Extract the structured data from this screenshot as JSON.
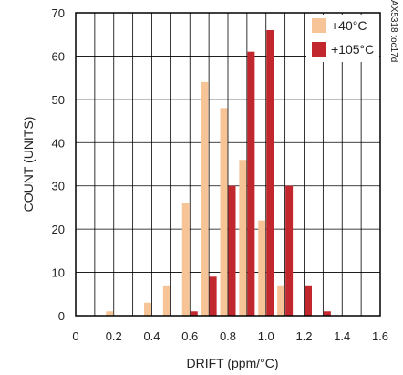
{
  "chart_data": {
    "type": "bar",
    "xlabel": "DRIFT (ppm/°C)",
    "ylabel": "COUNT (UNITS)",
    "xlim": [
      0,
      1.6
    ],
    "ylim": [
      0,
      70
    ],
    "x_ticks": [
      "0",
      "0.2",
      "0.4",
      "0.6",
      "0.8",
      "1.0",
      "1.2",
      "1.4",
      "1.6"
    ],
    "y_ticks": [
      "0",
      "10",
      "20",
      "30",
      "40",
      "50",
      "60",
      "70"
    ],
    "x_tick_values": [
      0,
      0.2,
      0.4,
      0.6,
      0.8,
      1.0,
      1.2,
      1.4,
      1.6
    ],
    "y_tick_values": [
      0,
      10,
      20,
      30,
      40,
      50,
      60,
      70
    ],
    "grid": true,
    "legend_position": "top-right",
    "figure_id": "MAX5318 toc17d",
    "series": [
      {
        "name": "+40°C",
        "color": "#f6c497",
        "x": [
          0.2,
          0.4,
          0.5,
          0.6,
          0.7,
          0.8,
          0.9,
          1.0,
          1.1,
          1.2,
          1.3
        ],
        "values": [
          1,
          3,
          7,
          26,
          54,
          48,
          36,
          22,
          7,
          0,
          0
        ]
      },
      {
        "name": "+105°C",
        "color": "#c1272d",
        "x": [
          0.2,
          0.4,
          0.5,
          0.6,
          0.7,
          0.8,
          0.9,
          1.0,
          1.1,
          1.2,
          1.3
        ],
        "values": [
          0,
          0,
          0,
          1,
          9,
          30,
          61,
          66,
          30,
          7,
          1
        ]
      }
    ]
  }
}
